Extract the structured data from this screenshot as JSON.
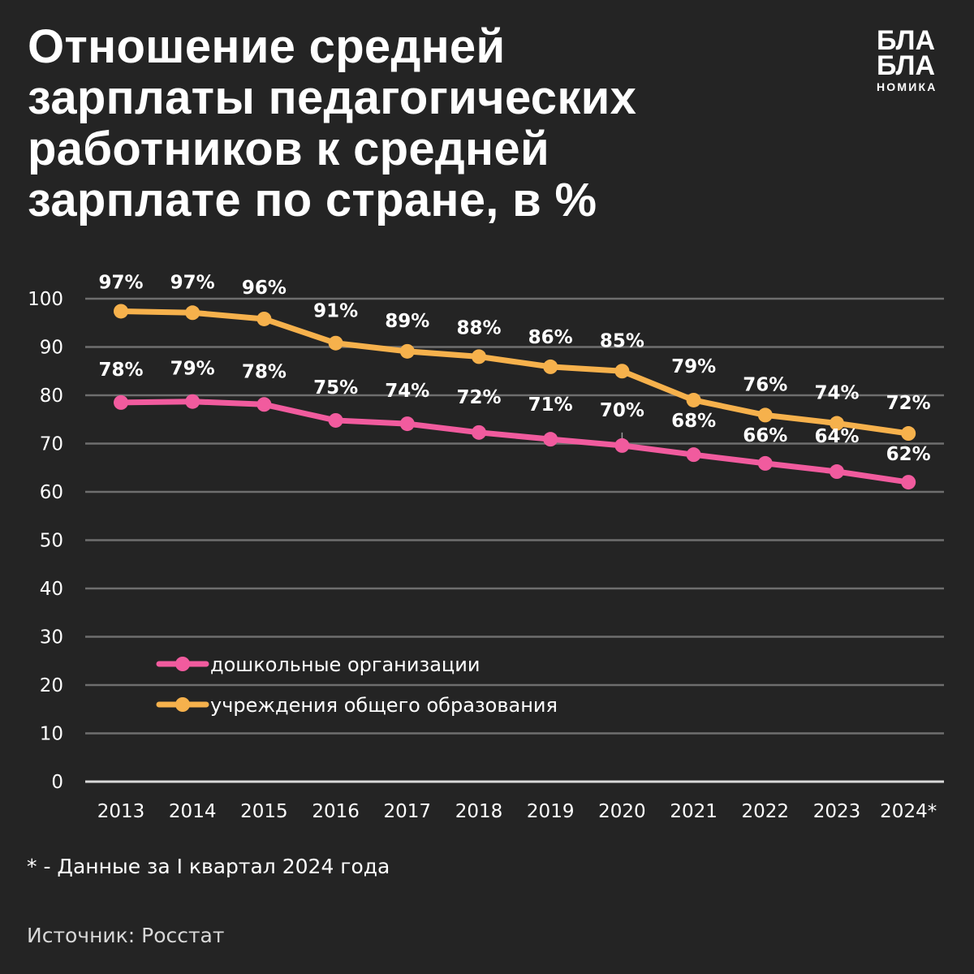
{
  "title_lines": [
    "Отношение средней",
    "зарплаты педагогических",
    "работников к средней",
    "зарплате по стране, в %"
  ],
  "logo": {
    "line1": "БЛА",
    "line2": "БЛА",
    "line3": "НОМИКА"
  },
  "footnote": "* - Данные за I квартал 2024 года",
  "source": "Источник: Росстат",
  "colors": {
    "background": "#242424",
    "grid": "#6e6e6e",
    "baseline": "#d9d9d9",
    "preschool": "#F15B9E",
    "general": "#F6B14C"
  },
  "chart_data": {
    "type": "line",
    "title": "Отношение средней зарплаты педагогических работников к средней зарплате по стране, в %",
    "xlabel": "",
    "ylabel": "",
    "ylim": [
      0,
      100
    ],
    "yticks": [
      0,
      10,
      20,
      30,
      40,
      50,
      60,
      70,
      80,
      90,
      100
    ],
    "grid": true,
    "legend_position": "bottom-left",
    "categories": [
      "2013",
      "2014",
      "2015",
      "2016",
      "2017",
      "2018",
      "2019",
      "2020",
      "2021",
      "2022",
      "2023",
      "2024*"
    ],
    "series": [
      {
        "name": "дошкольные организации",
        "color_key": "preschool",
        "values": [
          78.5,
          78.7,
          78.1,
          74.8,
          74.1,
          72.3,
          70.9,
          69.6,
          67.7,
          65.9,
          64.2,
          62.0
        ],
        "labels": [
          "78%",
          "79%",
          "78%",
          "75%",
          "74%",
          "72%",
          "71%",
          "70%",
          "68%",
          "66%",
          "64%",
          "62%"
        ]
      },
      {
        "name": "учреждения общего образования",
        "color_key": "general",
        "values": [
          97.4,
          97.1,
          95.8,
          90.8,
          89.1,
          88.0,
          85.9,
          85.0,
          79.0,
          75.9,
          74.2,
          72.1
        ],
        "labels": [
          "97%",
          "97%",
          "96%",
          "91%",
          "89%",
          "88%",
          "86%",
          "85%",
          "79%",
          "76%",
          "74%",
          "72%"
        ]
      }
    ]
  }
}
